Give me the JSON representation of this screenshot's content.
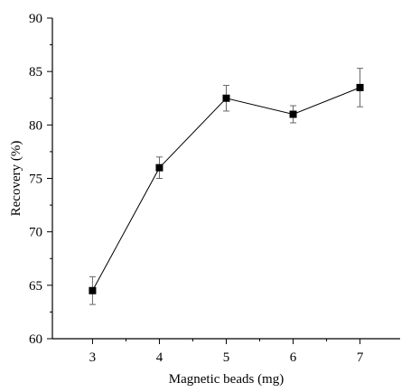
{
  "chart_data": {
    "type": "line",
    "xlabel": "Magnetic beads (mg)",
    "ylabel": "Recovery (%)",
    "xlim": [
      2.4,
      7.6
    ],
    "ylim": [
      60,
      90
    ],
    "x_ticks": [
      3,
      4,
      5,
      6,
      7
    ],
    "y_ticks": [
      60,
      65,
      70,
      75,
      80,
      85,
      90
    ],
    "grid": false,
    "legend": "none",
    "marker": "square",
    "series": [
      {
        "x": [
          3,
          4,
          5,
          6,
          7
        ],
        "y": [
          64.5,
          76.0,
          82.5,
          81.0,
          83.5
        ],
        "error": [
          1.3,
          1.0,
          1.2,
          0.8,
          1.8
        ]
      }
    ]
  }
}
